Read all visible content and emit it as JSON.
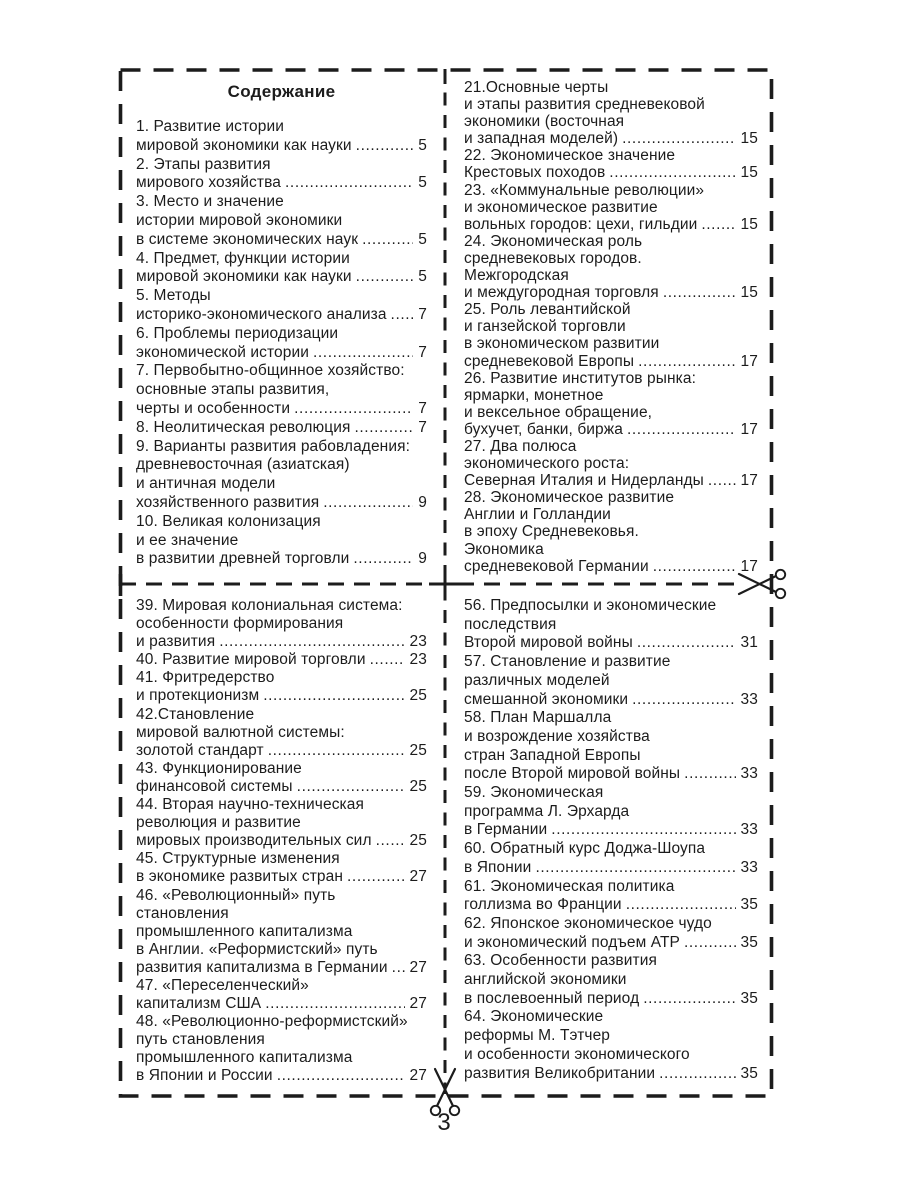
{
  "page": {
    "kind": "book-table-of-contents",
    "number": "3",
    "colors": {
      "ink": "#1c1c1c",
      "paper": "#ffffff"
    },
    "icons": {
      "cut_mark": "scissors-icon"
    }
  },
  "toc": {
    "title": "Содержание",
    "sections": {
      "top_left": {
        "items": [
          {
            "lines": [
              "1. Развитие истории",
              "мировой экономики как науки"
            ],
            "page": "5"
          },
          {
            "lines": [
              "2. Этапы развития",
              "мирового хозяйства"
            ],
            "page": "5"
          },
          {
            "lines": [
              "3. Место и значение",
              "истории мировой экономики",
              "в системе экономических наук"
            ],
            "page": "5"
          },
          {
            "lines": [
              "4. Предмет, функции истории",
              "мировой экономики как науки"
            ],
            "page": "5"
          },
          {
            "lines": [
              "5. Методы",
              "историко-экономического анализа"
            ],
            "page": "7"
          },
          {
            "lines": [
              "6. Проблемы периодизации",
              "экономической истории"
            ],
            "page": "7"
          },
          {
            "lines": [
              "7. Первобытно-общинное хозяйство:",
              "основные этапы развития,",
              "черты и особенности"
            ],
            "page": "7"
          },
          {
            "lines": [
              "8. Неолитическая революция"
            ],
            "page": "7"
          },
          {
            "lines": [
              "9. Варианты развития рабовладения:",
              "древневосточная (азиатская)",
              "и античная модели",
              "хозяйственного развития"
            ],
            "page": "9"
          },
          {
            "lines": [
              "10. Великая колонизация",
              "и ее значение",
              "в развитии древней торговли"
            ],
            "page": "9"
          }
        ]
      },
      "top_right": {
        "items": [
          {
            "lines": [
              "21.Основные черты",
              "и этапы развития средневековой",
              "экономики (восточная",
              "и западная моделей)"
            ],
            "page": "15"
          },
          {
            "lines": [
              "22. Экономическое значение",
              "Крестовых походов"
            ],
            "page": "15"
          },
          {
            "lines": [
              "23. «Коммунальные революции»",
              "и экономическое развитие",
              "вольных городов: цехи, гильдии"
            ],
            "page": "15"
          },
          {
            "lines": [
              "24. Экономическая роль",
              "средневековых городов.",
              "Межгородская",
              "и междугородная торговля"
            ],
            "page": "15"
          },
          {
            "lines": [
              "25. Роль левантийской",
              "и ганзейской торговли",
              "в экономическом развитии",
              "средневековой Европы"
            ],
            "page": "17"
          },
          {
            "lines": [
              "26. Развитие институтов рынка:",
              "ярмарки, монетное",
              "и вексельное обращение,",
              "бухучет, банки, биржа"
            ],
            "page": "17"
          },
          {
            "lines": [
              "27. Два полюса",
              "экономического роста:",
              "Северная Италия и Нидерланды"
            ],
            "page": "17"
          },
          {
            "lines": [
              "28. Экономическое развитие",
              "Англии и Голландии",
              "в эпоху Средневековья.",
              "Экономика",
              "средневековой Германии"
            ],
            "page": "17"
          }
        ]
      },
      "bottom_left": {
        "items": [
          {
            "lines": [
              "39. Мировая колониальная система:",
              "особенности формирования",
              "и развития"
            ],
            "page": "23"
          },
          {
            "lines": [
              "40. Развитие мировой торговли"
            ],
            "page": "23"
          },
          {
            "lines": [
              "41. Фритредерство",
              "и протекционизм"
            ],
            "page": "25"
          },
          {
            "lines": [
              "42.Становление",
              "мировой валютной системы:",
              "золотой стандарт"
            ],
            "page": "25"
          },
          {
            "lines": [
              "43. Функционирование",
              "финансовой системы"
            ],
            "page": "25"
          },
          {
            "lines": [
              "44. Вторая научно-техническая",
              "революция и развитие",
              "мировых производительных сил"
            ],
            "page": "25"
          },
          {
            "lines": [
              "45. Структурные изменения",
              "в экономике развитых стран"
            ],
            "page": "27"
          },
          {
            "lines": [
              "46. «Революционный» путь",
              "становления",
              "промышленного капитализма",
              "в Англии. «Реформистский» путь",
              "развития капитализма в Германии"
            ],
            "page": "27"
          },
          {
            "lines": [
              "47. «Переселенческий»",
              "капитализм США"
            ],
            "page": "27"
          },
          {
            "lines": [
              "48. «Революционно-реформистский»",
              "путь становления",
              "промышленного капитализма",
              "в Японии и России"
            ],
            "page": "27"
          }
        ]
      },
      "bottom_right": {
        "items": [
          {
            "lines": [
              "56. Предпосылки и экономические",
              "последствия",
              "Второй мировой войны"
            ],
            "page": "31"
          },
          {
            "lines": [
              "57. Становление и развитие",
              "различных моделей",
              "смешанной экономики"
            ],
            "page": "33"
          },
          {
            "lines": [
              "58. План Маршалла",
              "и возрождение хозяйства",
              "стран Западной Европы",
              "после Второй мировой войны"
            ],
            "page": "33"
          },
          {
            "lines": [
              "59. Экономическая",
              "программа Л. Эрхарда",
              "в Германии"
            ],
            "page": "33"
          },
          {
            "lines": [
              "60. Обратный курс Доджа-Шоупа",
              "в Японии"
            ],
            "page": "33"
          },
          {
            "lines": [
              "61. Экономическая политика",
              "голлизма во Франции"
            ],
            "page": "35"
          },
          {
            "lines": [
              "62. Японское экономическое чудо",
              "и экономический подъем АТР"
            ],
            "page": "35"
          },
          {
            "lines": [
              "63. Особенности развития",
              "английской экономики",
              "в послевоенный период"
            ],
            "page": "35"
          },
          {
            "lines": [
              "64. Экономические",
              "реформы М. Тэтчер",
              "и особенности экономического",
              "развития Великобритании"
            ],
            "page": "35"
          }
        ]
      }
    }
  }
}
